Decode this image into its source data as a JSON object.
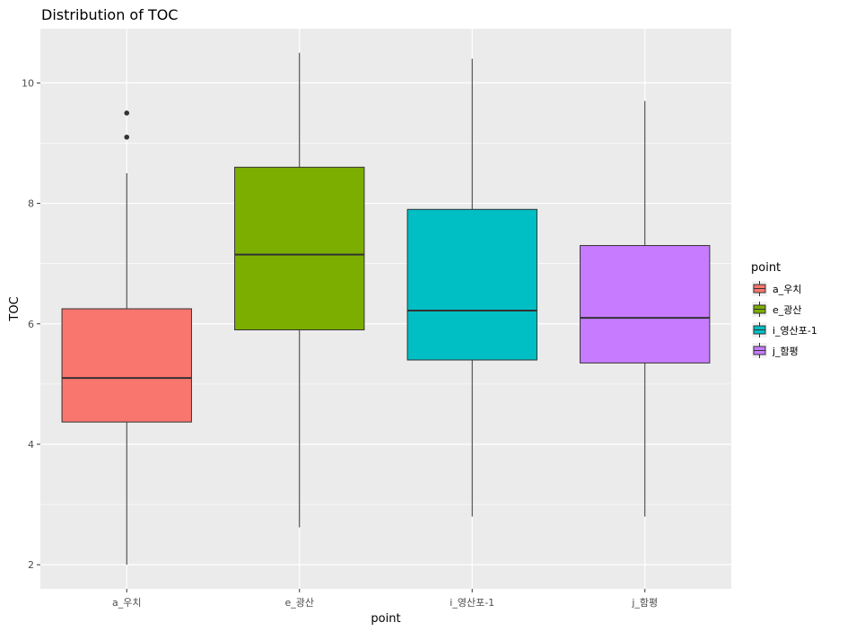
{
  "chart_data": {
    "type": "boxplot",
    "title": "Distribution of TOC",
    "xlabel": "point",
    "ylabel": "TOC",
    "ylim": [
      1.6,
      10.9
    ],
    "yticks": [
      2,
      4,
      6,
      8,
      10
    ],
    "grid": true,
    "legend_title": "point",
    "legend_position": "right",
    "categories": [
      "a_우치",
      "e_광산",
      "i_영산포-1",
      "j_함평"
    ],
    "boxes": [
      {
        "name": "a_우치",
        "color": "#F8766D",
        "min": 2.0,
        "q1": 4.37,
        "median": 5.1,
        "q3": 6.25,
        "max": 8.5,
        "outliers": [
          9.1,
          9.5
        ]
      },
      {
        "name": "e_광산",
        "color": "#7CAE00",
        "min": 2.62,
        "q1": 5.9,
        "median": 7.15,
        "q3": 8.6,
        "max": 10.5,
        "outliers": []
      },
      {
        "name": "i_영산포-1",
        "color": "#00BFC4",
        "min": 2.8,
        "q1": 5.4,
        "median": 6.22,
        "q3": 7.9,
        "max": 10.4,
        "outliers": []
      },
      {
        "name": "j_함평",
        "color": "#C77CFF",
        "min": 2.8,
        "q1": 5.35,
        "median": 6.1,
        "q3": 7.3,
        "max": 9.7,
        "outliers": []
      }
    ]
  }
}
